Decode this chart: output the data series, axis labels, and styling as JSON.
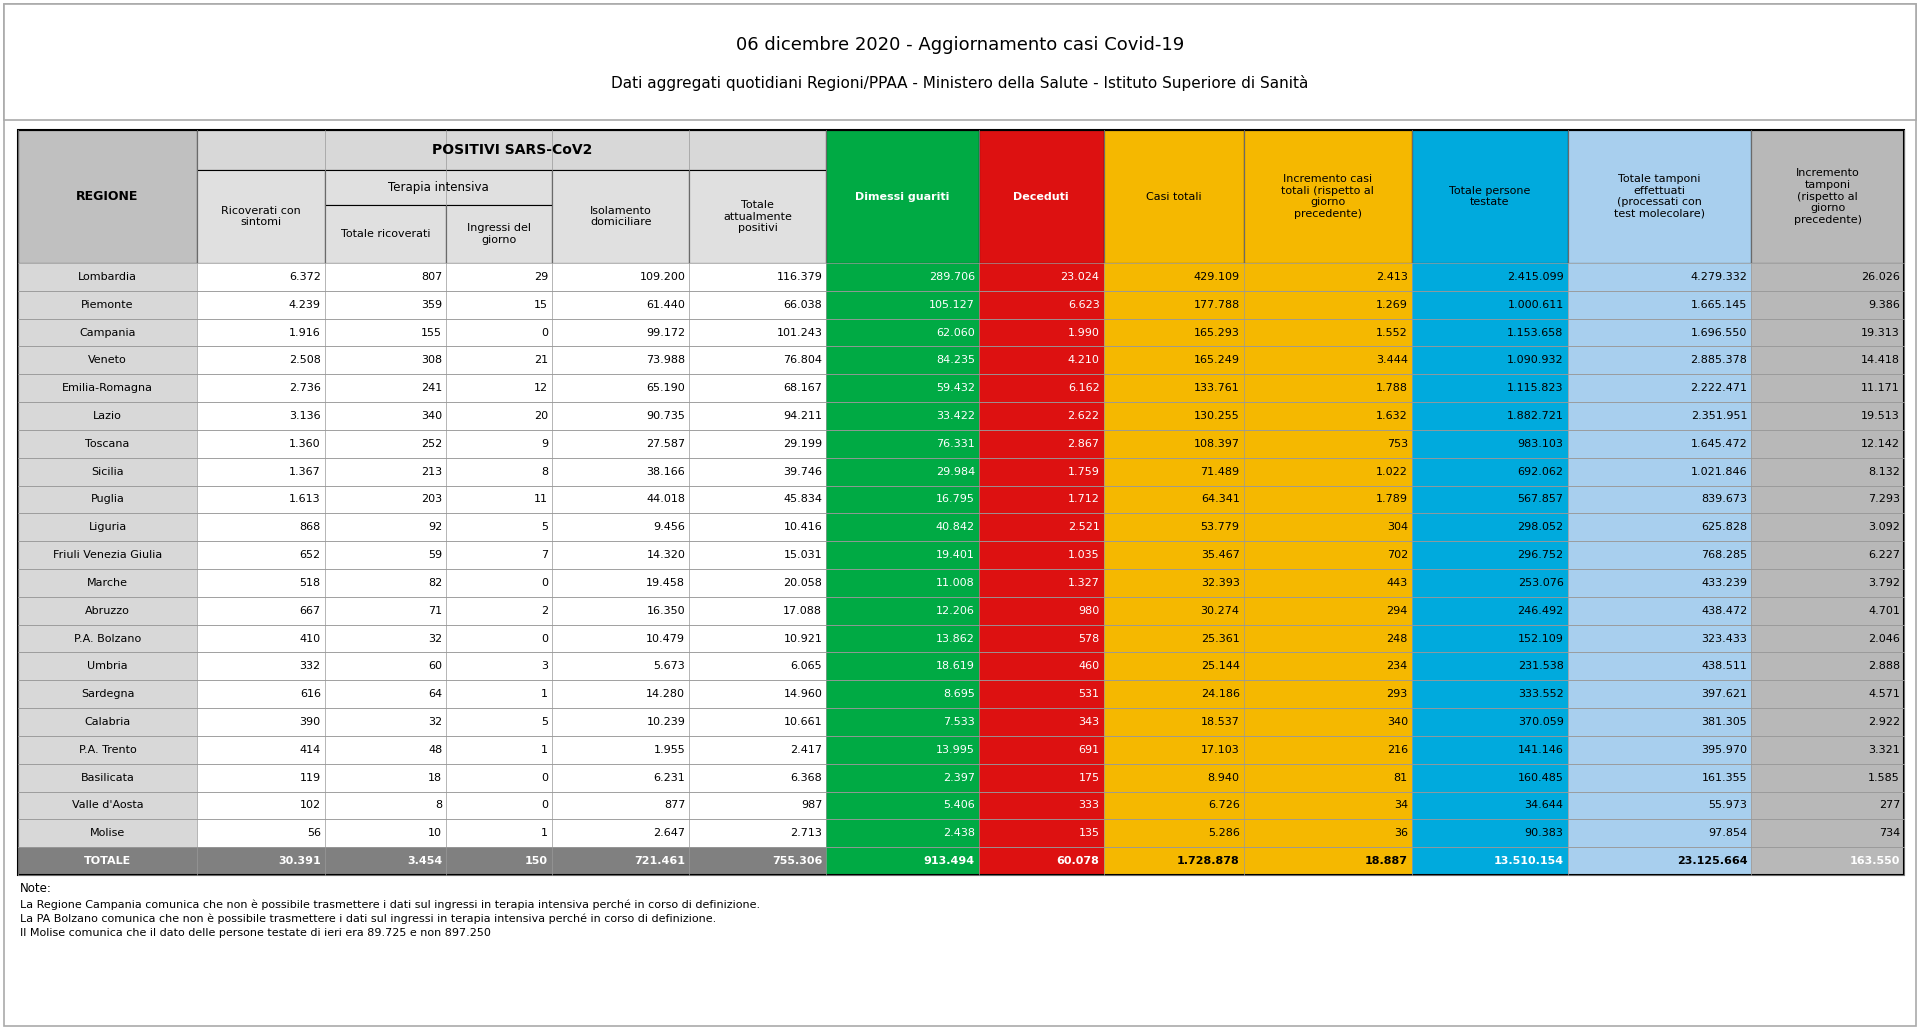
{
  "title1": "06 dicembre 2020 - Aggiornamento casi Covid-19",
  "title2": "Dati aggregati quotidiani Regioni/PPAA - Ministero della Salute - Istituto Superiore di Sanità",
  "note_title": "Note:",
  "note_lines": [
    "La Regione Campania comunica che non è possibile trasmettere i dati sul ingressi in terapia intensiva perché in corso di definizione.",
    "La PA Bolzano comunica che non è possibile trasmettere i dati sul ingressi in terapia intensiva perché in corso di definizione.",
    "Il Molise comunica che il dato delle persone testate di ieri era 89.725 e non 897.250"
  ],
  "regions": [
    "Lombardia",
    "Piemonte",
    "Campania",
    "Veneto",
    "Emilia-Romagna",
    "Lazio",
    "Toscana",
    "Sicilia",
    "Puglia",
    "Liguria",
    "Friuli Venezia Giulia",
    "Marche",
    "Abruzzo",
    "P.A. Bolzano",
    "Umbria",
    "Sardegna",
    "Calabria",
    "P.A. Trento",
    "Basilicata",
    "Valle d'Aosta",
    "Molise",
    "TOTALE"
  ],
  "data": [
    [
      6372,
      807,
      29,
      109200,
      116379,
      289706,
      23024,
      429109,
      2413,
      2415099,
      4279332,
      26026
    ],
    [
      4239,
      359,
      15,
      61440,
      66038,
      105127,
      6623,
      177788,
      1269,
      1000611,
      1665145,
      9386
    ],
    [
      1916,
      155,
      0,
      99172,
      101243,
      62060,
      1990,
      165293,
      1552,
      1153658,
      1696550,
      19313
    ],
    [
      2508,
      308,
      21,
      73988,
      76804,
      84235,
      4210,
      165249,
      3444,
      1090932,
      2885378,
      14418
    ],
    [
      2736,
      241,
      12,
      65190,
      68167,
      59432,
      6162,
      133761,
      1788,
      1115823,
      2222471,
      11171
    ],
    [
      3136,
      340,
      20,
      90735,
      94211,
      33422,
      2622,
      130255,
      1632,
      1882721,
      2351951,
      19513
    ],
    [
      1360,
      252,
      9,
      27587,
      29199,
      76331,
      2867,
      108397,
      753,
      983103,
      1645472,
      12142
    ],
    [
      1367,
      213,
      8,
      38166,
      39746,
      29984,
      1759,
      71489,
      1022,
      692062,
      1021846,
      8132
    ],
    [
      1613,
      203,
      11,
      44018,
      45834,
      16795,
      1712,
      64341,
      1789,
      567857,
      839673,
      7293
    ],
    [
      868,
      92,
      5,
      9456,
      10416,
      40842,
      2521,
      53779,
      304,
      298052,
      625828,
      3092
    ],
    [
      652,
      59,
      7,
      14320,
      15031,
      19401,
      1035,
      35467,
      702,
      296752,
      768285,
      6227
    ],
    [
      518,
      82,
      0,
      19458,
      20058,
      11008,
      1327,
      32393,
      443,
      253076,
      433239,
      3792
    ],
    [
      667,
      71,
      2,
      16350,
      17088,
      12206,
      980,
      30274,
      294,
      246492,
      438472,
      4701
    ],
    [
      410,
      32,
      0,
      10479,
      10921,
      13862,
      578,
      25361,
      248,
      152109,
      323433,
      2046
    ],
    [
      332,
      60,
      3,
      5673,
      6065,
      18619,
      460,
      25144,
      234,
      231538,
      438511,
      2888
    ],
    [
      616,
      64,
      1,
      14280,
      14960,
      8695,
      531,
      24186,
      293,
      333552,
      397621,
      4571
    ],
    [
      390,
      32,
      5,
      10239,
      10661,
      7533,
      343,
      18537,
      340,
      370059,
      381305,
      2922
    ],
    [
      414,
      48,
      1,
      1955,
      2417,
      13995,
      691,
      17103,
      216,
      141146,
      395970,
      3321
    ],
    [
      119,
      18,
      0,
      6231,
      6368,
      2397,
      175,
      8940,
      81,
      160485,
      161355,
      1585
    ],
    [
      102,
      8,
      0,
      877,
      987,
      5406,
      333,
      6726,
      34,
      34644,
      55973,
      277
    ],
    [
      56,
      10,
      1,
      2647,
      2713,
      2438,
      135,
      5286,
      36,
      90383,
      97854,
      734
    ],
    [
      30391,
      3454,
      150,
      721461,
      755306,
      913494,
      60078,
      1728878,
      18887,
      13510154,
      23125664,
      163550
    ]
  ],
  "col_colors": [
    "#c8c8c8",
    "#c8c8c8",
    "#c8c8c8",
    "#c8c8c8",
    "#c8c8c8",
    "#c8c8c8",
    "#00aa44",
    "#dd1111",
    "#f5b800",
    "#f5b800",
    "#00aadd",
    "#a8cfee",
    "#b8b8b8"
  ],
  "totale_bg": "#808080",
  "totale_colored_bg": {
    "5": "#00aa44",
    "6": "#dd1111",
    "7": "#f5b800",
    "8": "#f5b800",
    "9": "#00aadd",
    "10": "#a8cfee",
    "11": "#b8b8b8"
  }
}
